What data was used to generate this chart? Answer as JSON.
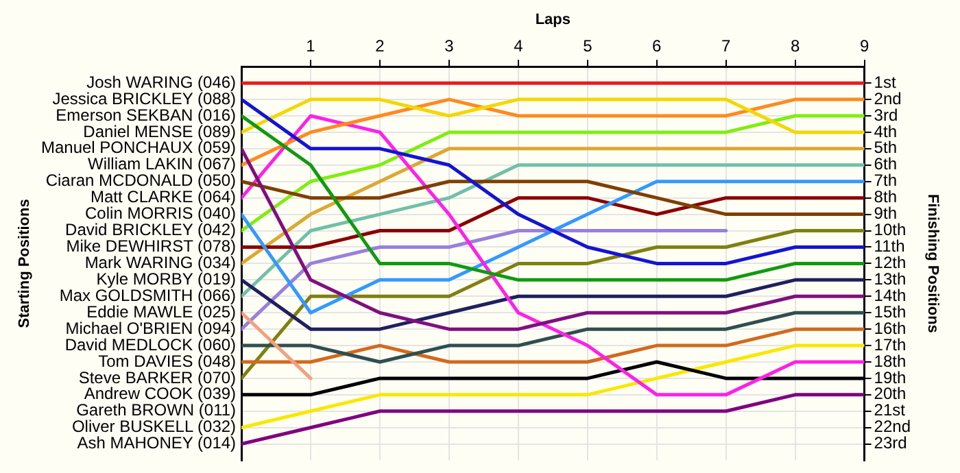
{
  "chart_data": {
    "type": "line",
    "xlabel": "Laps",
    "y2label": "Finishing Positions",
    "xlim": [
      0,
      9
    ],
    "xticks": [
      1,
      2,
      3,
      4,
      5,
      6,
      7,
      8,
      9
    ],
    "ylim": [
      24,
      0
    ],
    "yticks": [
      {
        "value": 1,
        "label": "1st"
      },
      {
        "value": 2,
        "label": "2nd"
      },
      {
        "value": 3,
        "label": "3rd"
      },
      {
        "value": 4,
        "label": "4th"
      },
      {
        "value": 5,
        "label": "5th"
      },
      {
        "value": 6,
        "label": "6th"
      },
      {
        "value": 7,
        "label": "7th"
      },
      {
        "value": 8,
        "label": "8th"
      },
      {
        "value": 9,
        "label": "9th"
      },
      {
        "value": 10,
        "label": "10th"
      },
      {
        "value": 11,
        "label": "11th"
      },
      {
        "value": 12,
        "label": "12th"
      },
      {
        "value": 13,
        "label": "13th"
      },
      {
        "value": 14,
        "label": "14th"
      },
      {
        "value": 15,
        "label": "15th"
      },
      {
        "value": 16,
        "label": "16th"
      },
      {
        "value": 17,
        "label": "17th"
      },
      {
        "value": 18,
        "label": "18th"
      },
      {
        "value": 19,
        "label": "19th"
      },
      {
        "value": 20,
        "label": "20th"
      },
      {
        "value": 21,
        "label": "21st"
      },
      {
        "value": 22,
        "label": "22nd"
      },
      {
        "value": 23,
        "label": "23rd"
      }
    ],
    "annotations": [
      "Gareth BROWN (011)",
      "Starting Positions"
    ],
    "x": [
      0,
      1,
      2,
      3,
      4,
      5,
      6,
      7,
      8,
      9
    ],
    "grid": true,
    "legend": false,
    "marker": "none",
    "line_style": "solid",
    "series": [
      {
        "name": "Josh WARING (046)",
        "color": "#e81c1c",
        "values": [
          1,
          1,
          1,
          1,
          1,
          1,
          1,
          1,
          1,
          1
        ]
      },
      {
        "name": "Jessica BRICKLEY (088)",
        "color": "#1414d2",
        "values": [
          2,
          5,
          5,
          6,
          9,
          11,
          12,
          12,
          11,
          11
        ]
      },
      {
        "name": "Emerson SEKBAN (016)",
        "color": "#109a10",
        "values": [
          3,
          6,
          12,
          12,
          13,
          13,
          13,
          13,
          12,
          12
        ]
      },
      {
        "name": "Daniel MENSE (089)",
        "color": "#f2d800",
        "values": [
          4,
          2,
          2,
          3,
          2,
          2,
          2,
          2,
          4,
          4
        ]
      },
      {
        "name": "Manuel PONCHAUX (059)",
        "color": "#800f80",
        "values": [
          5,
          13,
          15,
          16,
          16,
          15,
          15,
          15,
          14,
          14
        ]
      },
      {
        "name": "William LAKIN (067)",
        "color": "#ff8a1e",
        "values": [
          6,
          4,
          3,
          2,
          3,
          3,
          3,
          3,
          2,
          2
        ]
      },
      {
        "name": "Ciaran MCDONALD (050)",
        "color": "#7f3f00",
        "values": [
          7,
          8,
          8,
          7,
          7,
          7,
          8,
          9,
          9,
          9
        ]
      },
      {
        "name": "Matt CLARKE (064)",
        "color": "#ff20e8",
        "values": [
          8,
          3,
          4,
          9,
          15,
          17,
          20,
          20,
          18,
          18
        ]
      },
      {
        "name": "Colin MORRIS (040)",
        "color": "#3399ff",
        "values": [
          9,
          15,
          13,
          13,
          11,
          9,
          7,
          7,
          7,
          7
        ]
      },
      {
        "name": "David BRICKLEY (042)",
        "color": "#80ee10",
        "values": [
          10,
          7,
          6,
          4,
          4,
          4,
          4,
          4,
          3,
          3
        ]
      },
      {
        "name": "Mike DEWHIRST (078)",
        "color": "#8b0000",
        "values": [
          11,
          11,
          10,
          10,
          8,
          8,
          9,
          8,
          8,
          8
        ]
      },
      {
        "name": "Mark WARING (034)",
        "color": "#dca830",
        "values": [
          12,
          9,
          7,
          5,
          5,
          5,
          5,
          5,
          5,
          5
        ]
      },
      {
        "name": "Kyle MORBY (019)",
        "color": "#20205f",
        "values": [
          13,
          16,
          16,
          15,
          14,
          14,
          14,
          14,
          13,
          13
        ]
      },
      {
        "name": "Max GOLDSMITH (066)",
        "color": "#70c0a8",
        "values": [
          14,
          10,
          9,
          8,
          6,
          6,
          6,
          6,
          6,
          6
        ]
      },
      {
        "name": "Eddie MAWLE (025)",
        "color": "#f4a080",
        "values": [
          15,
          19,
          null,
          null,
          null,
          null,
          null,
          null,
          null,
          null
        ]
      },
      {
        "name": "Michael O'BRIEN (094)",
        "color": "#9880dc",
        "values": [
          16,
          12,
          11,
          11,
          10,
          10,
          10,
          10,
          null,
          null
        ]
      },
      {
        "name": "David MEDLOCK (060)",
        "color": "#2f4f4f",
        "values": [
          17,
          17,
          18,
          17,
          17,
          16,
          16,
          16,
          15,
          15
        ]
      },
      {
        "name": "Tom DAVIES (048)",
        "color": "#d2691e",
        "values": [
          18,
          18,
          17,
          18,
          18,
          18,
          17,
          17,
          16,
          16
        ]
      },
      {
        "name": "Steve BARKER (070)",
        "color": "#808010",
        "values": [
          19,
          14,
          14,
          14,
          12,
          12,
          11,
          11,
          10,
          10
        ]
      },
      {
        "name": "Andrew COOK (039)",
        "color": "#000000",
        "values": [
          20,
          20,
          19,
          19,
          19,
          19,
          18,
          19,
          19,
          19
        ]
      },
      {
        "name": "Oliver BUSKELL (032)",
        "color": "#f8e800",
        "values": [
          22,
          21,
          20,
          20,
          20,
          20,
          19,
          18,
          17,
          17
        ]
      },
      {
        "name": "Ash MAHONEY (014)",
        "color": "#800080",
        "values": [
          23,
          22,
          21,
          21,
          21,
          21,
          21,
          21,
          20,
          20
        ]
      }
    ]
  }
}
